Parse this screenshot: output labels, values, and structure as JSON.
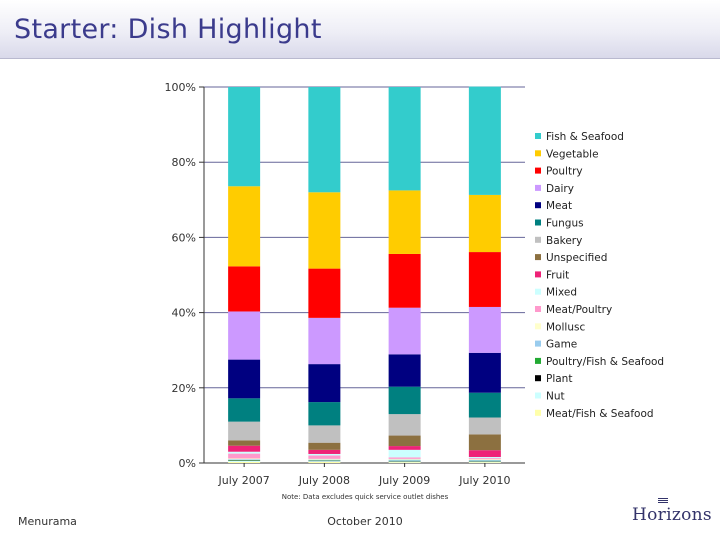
{
  "header": {
    "title": "Starter: Dish Highlight"
  },
  "footer": {
    "left": "Menurama",
    "center": "October 2010",
    "logo": "Horizons"
  },
  "note": "Note: Data excludes quick service outlet dishes",
  "chart_data": {
    "type": "bar",
    "stacked": true,
    "percent": true,
    "categories": [
      "July 2007",
      "July 2008",
      "July 2009",
      "July 2010"
    ],
    "y_ticks": [
      "0%",
      "20%",
      "40%",
      "60%",
      "80%",
      "100%"
    ],
    "ylim": [
      0,
      100
    ],
    "grid": true,
    "legend_position": "right",
    "series": [
      {
        "name": "Meat/Fish & Seafood",
        "color": "#ffffaa",
        "values": [
          0.3,
          0.3,
          0.2,
          0.2
        ]
      },
      {
        "name": "Nut",
        "color": "#ccffff",
        "values": [
          0.3,
          0.2,
          0.2,
          0.2
        ]
      },
      {
        "name": "Plant",
        "color": "#000000",
        "values": [
          0.1,
          0.1,
          0.1,
          0.1
        ]
      },
      {
        "name": "Poultry/Fish & Seafood",
        "color": "#22aa33",
        "values": [
          0.1,
          0.1,
          0.1,
          0.1
        ]
      },
      {
        "name": "Game",
        "color": "#99ccee",
        "values": [
          0.2,
          0.2,
          0.3,
          0.2
        ]
      },
      {
        "name": "Mollusc",
        "color": "#ffffcc",
        "values": [
          0.2,
          0.2,
          0.2,
          0.2
        ]
      },
      {
        "name": "Meat/Poultry",
        "color": "#ff99cc",
        "values": [
          1.3,
          0.9,
          0.4,
          0.3
        ]
      },
      {
        "name": "Mixed",
        "color": "#ccffff",
        "values": [
          0.5,
          0.4,
          2.0,
          0.3
        ]
      },
      {
        "name": "Fruit",
        "color": "#ee2277",
        "values": [
          1.6,
          1.1,
          1.0,
          1.8
        ]
      },
      {
        "name": "Unspecified",
        "color": "#8c7040",
        "values": [
          1.4,
          1.9,
          2.8,
          4.2
        ]
      },
      {
        "name": "Bakery",
        "color": "#c0c0c0",
        "values": [
          5.0,
          4.6,
          5.7,
          4.5
        ]
      },
      {
        "name": "Fungus",
        "color": "#008080",
        "values": [
          6.2,
          6.2,
          7.3,
          6.6
        ]
      },
      {
        "name": "Meat",
        "color": "#000080",
        "values": [
          10.3,
          10.1,
          8.6,
          10.6
        ]
      },
      {
        "name": "Dairy",
        "color": "#cc99ff",
        "values": [
          12.8,
          12.3,
          12.4,
          12.2
        ]
      },
      {
        "name": "Poultry",
        "color": "#ff0000",
        "values": [
          12.0,
          13.1,
          14.3,
          14.6
        ]
      },
      {
        "name": "Vegetable",
        "color": "#ffcc00",
        "values": [
          21.3,
          20.3,
          16.9,
          15.2
        ]
      },
      {
        "name": "Fish & Seafood",
        "color": "#33cccc",
        "values": [
          26.4,
          28.0,
          27.5,
          28.8
        ]
      }
    ],
    "legend_order": [
      "Fish & Seafood",
      "Vegetable",
      "Poultry",
      "Dairy",
      "Meat",
      "Fungus",
      "Bakery",
      "Unspecified",
      "Fruit",
      "Mixed",
      "Meat/Poultry",
      "Mollusc",
      "Game",
      "Poultry/Fish & Seafood",
      "Plant",
      "Nut",
      "Meat/Fish & Seafood"
    ]
  }
}
